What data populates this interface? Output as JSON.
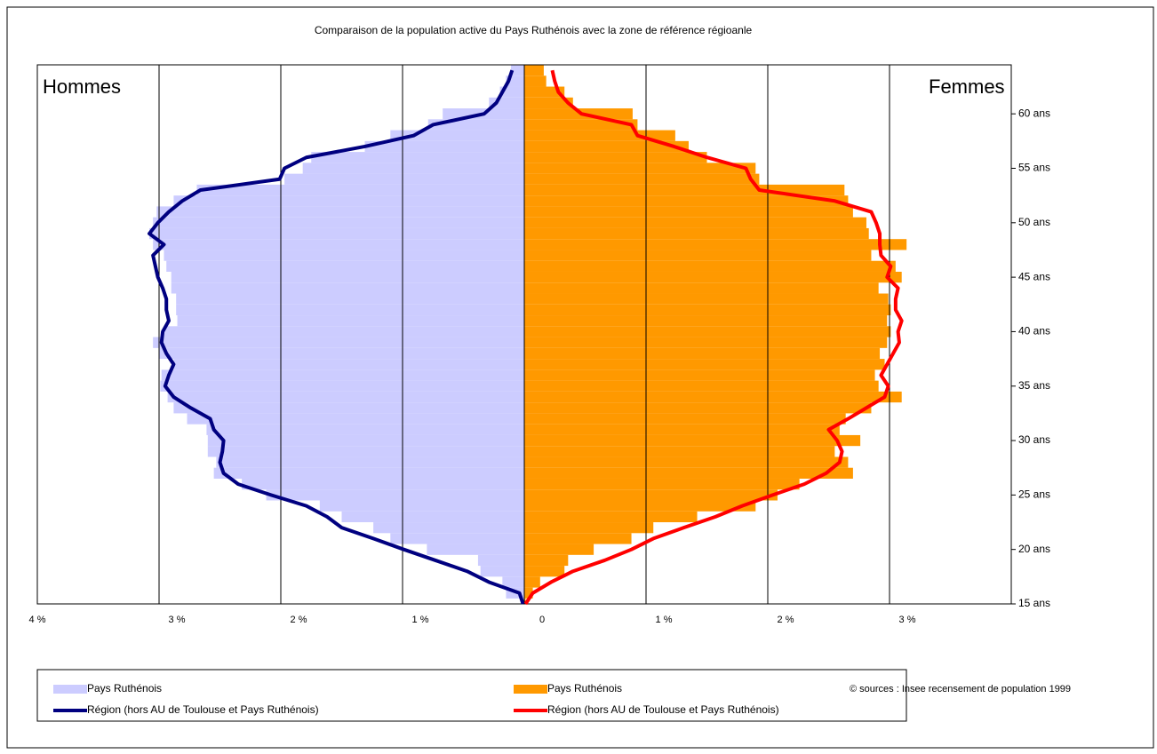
{
  "chart_data": {
    "type": "pyramid",
    "title": "Comparaison de la population active du Pays Ruthénois avec la zone de référence régioanle",
    "left_label": "Hommes",
    "right_label": "Femmes",
    "source": "© sources : Insee recensement de population  1999",
    "y": [
      15,
      16,
      17,
      18,
      19,
      20,
      21,
      22,
      23,
      24,
      25,
      26,
      27,
      28,
      29,
      30,
      31,
      32,
      33,
      34,
      35,
      36,
      37,
      38,
      39,
      40,
      41,
      42,
      43,
      44,
      45,
      46,
      47,
      48,
      49,
      50,
      51,
      52,
      53,
      54,
      55,
      56,
      57,
      58,
      59,
      60,
      61,
      62,
      63,
      64
    ],
    "xlim": [
      -4,
      4
    ],
    "xticks": [
      {
        "value": -4,
        "label": "4 %"
      },
      {
        "value": -3,
        "label": "3 %"
      },
      {
        "value": -2,
        "label": "2 %"
      },
      {
        "value": -1,
        "label": "1 %"
      },
      0,
      {
        "value": 1,
        "label": "1 %"
      },
      {
        "value": 2,
        "label": "2 %"
      },
      {
        "value": 3,
        "label": "3 %"
      }
    ],
    "ylim": [
      15,
      64.5
    ],
    "yticks": [
      {
        "value": 15,
        "label": "15 ans"
      },
      {
        "value": 20,
        "label": "20 ans"
      },
      {
        "value": 25,
        "label": "25 ans"
      },
      {
        "value": 30,
        "label": "30 ans"
      },
      {
        "value": 35,
        "label": "35 ans"
      },
      {
        "value": 40,
        "label": "40 ans"
      },
      {
        "value": 45,
        "label": "45 ans"
      },
      {
        "value": 50,
        "label": "50 ans"
      },
      {
        "value": 55,
        "label": "55 ans"
      },
      {
        "value": 60,
        "label": "60 ans"
      }
    ],
    "grid": true,
    "series": [
      {
        "name": "Pays Ruthénois",
        "type": "bar",
        "color": "#ccccff",
        "values": [
          -0.01,
          -0.15,
          -0.18,
          -0.36,
          -0.38,
          -0.8,
          -1.1,
          -1.24,
          -1.5,
          -1.68,
          -2.12,
          -2.32,
          -2.55,
          -2.53,
          -2.6,
          -2.6,
          -2.61,
          -2.77,
          -2.88,
          -2.93,
          -2.99,
          -2.98,
          -2.88,
          -3.0,
          -3.05,
          -2.96,
          -2.85,
          -2.86,
          -2.86,
          -2.9,
          -2.9,
          -2.94,
          -2.96,
          -3.05,
          -3.08,
          -3.05,
          -3.02,
          -2.88,
          -2.69,
          -1.97,
          -1.82,
          -1.75,
          -1.31,
          -1.1,
          -0.79,
          -0.67,
          -0.29,
          -0.2,
          -0.15,
          -0.11
        ]
      },
      {
        "name": "Pays Ruthénois",
        "type": "bar",
        "color": "#ff9900",
        "values": [
          0.01,
          0.07,
          0.13,
          0.33,
          0.36,
          0.57,
          0.88,
          1.06,
          1.42,
          1.9,
          2.08,
          2.26,
          2.7,
          2.66,
          2.55,
          2.76,
          2.59,
          2.64,
          2.85,
          3.1,
          2.91,
          2.88,
          2.96,
          2.92,
          2.98,
          3.01,
          2.98,
          3.01,
          2.99,
          2.91,
          3.1,
          3.05,
          2.85,
          3.14,
          2.83,
          2.81,
          2.7,
          2.66,
          2.63,
          1.93,
          1.9,
          1.5,
          1.35,
          1.24,
          0.93,
          0.89,
          0.4,
          0.33,
          0.18,
          0.16
        ]
      },
      {
        "name": "Région (hors AU de Toulouse et Pays Ruthénois)",
        "type": "line",
        "color": "#000080",
        "values": [
          -0.01,
          -0.04,
          -0.29,
          -0.47,
          -0.73,
          -0.99,
          -1.24,
          -1.5,
          -1.62,
          -1.79,
          -2.08,
          -2.35,
          -2.47,
          -2.5,
          -2.48,
          -2.47,
          -2.55,
          -2.58,
          -2.74,
          -2.88,
          -2.95,
          -2.92,
          -2.88,
          -2.94,
          -2.98,
          -2.97,
          -2.92,
          -2.94,
          -2.94,
          -2.97,
          -3.01,
          -3.03,
          -3.05,
          -2.96,
          -3.08,
          -3.01,
          -2.92,
          -2.81,
          -2.66,
          -2.01,
          -1.97,
          -1.79,
          -1.31,
          -0.91,
          -0.75,
          -0.33,
          -0.23,
          -0.18,
          -0.13,
          -0.1
        ]
      },
      {
        "name": "Région (hors AU de Toulouse et Pays Ruthénois)",
        "type": "line",
        "color": "#ff0000",
        "values": [
          0.01,
          0.07,
          0.22,
          0.4,
          0.66,
          0.88,
          1.06,
          1.31,
          1.57,
          1.79,
          2.04,
          2.3,
          2.48,
          2.59,
          2.61,
          2.57,
          2.5,
          2.66,
          2.81,
          2.96,
          2.99,
          2.93,
          2.98,
          3.03,
          3.08,
          3.07,
          3.1,
          3.05,
          3.05,
          3.07,
          2.98,
          3.01,
          2.93,
          2.92,
          2.92,
          2.89,
          2.85,
          2.55,
          1.93,
          1.86,
          1.82,
          1.5,
          1.23,
          0.93,
          0.88,
          0.47,
          0.36,
          0.28,
          0.25,
          0.23
        ]
      }
    ]
  }
}
